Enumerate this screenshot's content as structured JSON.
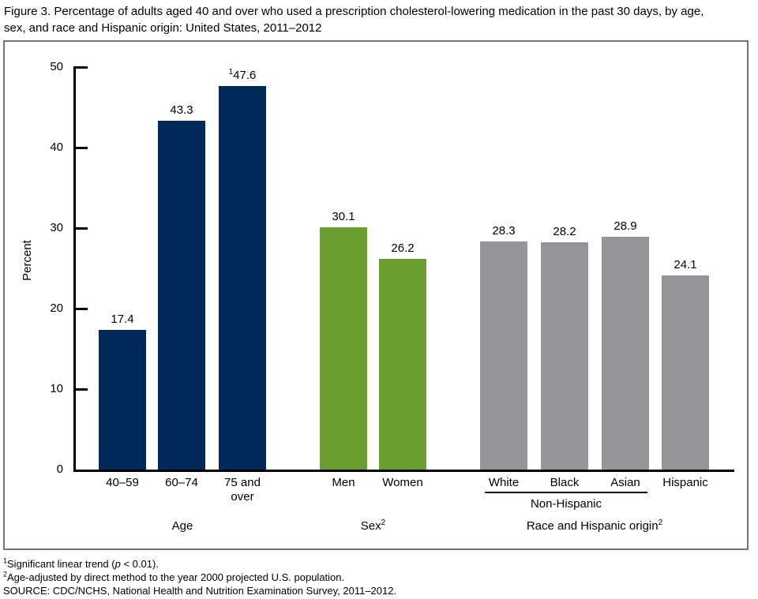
{
  "title": "Figure 3. Percentage of adults aged 40 and over who used a prescription cholesterol-lowering medication in the past 30 days, by age, sex, and race and Hispanic origin: United States, 2011–2012",
  "chart_data": {
    "type": "bar",
    "title": "Figure 3. Percentage of adults aged 40 and over who used a prescription cholesterol-lowering medication in the past 30 days, by age, sex, and race and Hispanic origin: United States, 2011–2012",
    "xlabel": "",
    "ylabel": "Percent",
    "ylim": [
      0,
      50
    ],
    "yticks": [
      0,
      10,
      20,
      30,
      40,
      50
    ],
    "grid": false,
    "legend": false,
    "groups": [
      {
        "label": "Age",
        "label_sup": "",
        "color": "#002a5c",
        "bars": [
          {
            "category": "40–59",
            "value": 17.4,
            "value_label": "17.4",
            "value_sup": ""
          },
          {
            "category": "60–74",
            "value": 43.3,
            "value_label": "43.3",
            "value_sup": ""
          },
          {
            "category": "75 and\nover",
            "value": 47.6,
            "value_label": "47.6",
            "value_sup": "1"
          }
        ]
      },
      {
        "label": "Sex",
        "label_sup": "2",
        "color": "#699e30",
        "bars": [
          {
            "category": "Men",
            "value": 30.1,
            "value_label": "30.1",
            "value_sup": ""
          },
          {
            "category": "Women",
            "value": 26.2,
            "value_label": "26.2",
            "value_sup": ""
          }
        ]
      },
      {
        "label": "Race and Hispanic origin",
        "label_sup": "2",
        "color": "#939598",
        "bars": [
          {
            "category": "White",
            "value": 28.3,
            "value_label": "28.3",
            "value_sup": ""
          },
          {
            "category": "Black",
            "value": 28.2,
            "value_label": "28.2",
            "value_sup": ""
          },
          {
            "category": "Asian",
            "value": 28.9,
            "value_label": "28.9",
            "value_sup": ""
          },
          {
            "category": "Hispanic",
            "value": 24.1,
            "value_label": "24.1",
            "value_sup": ""
          }
        ],
        "subgroup": {
          "label": "Non-Hispanic",
          "bar_from": 0,
          "bar_to": 2
        }
      }
    ]
  },
  "footnotes": [
    {
      "sup": "1",
      "pre": "Significant linear trend (",
      "italic": "p",
      "post": " < 0.01)."
    },
    {
      "sup": "2",
      "text": "Age-adjusted by direct method to the year 2000 projected U.S. population."
    },
    {
      "sup": "",
      "text": "SOURCE: CDC/NCHS, National Health and Nutrition Examination Survey, 2011–2012."
    }
  ]
}
